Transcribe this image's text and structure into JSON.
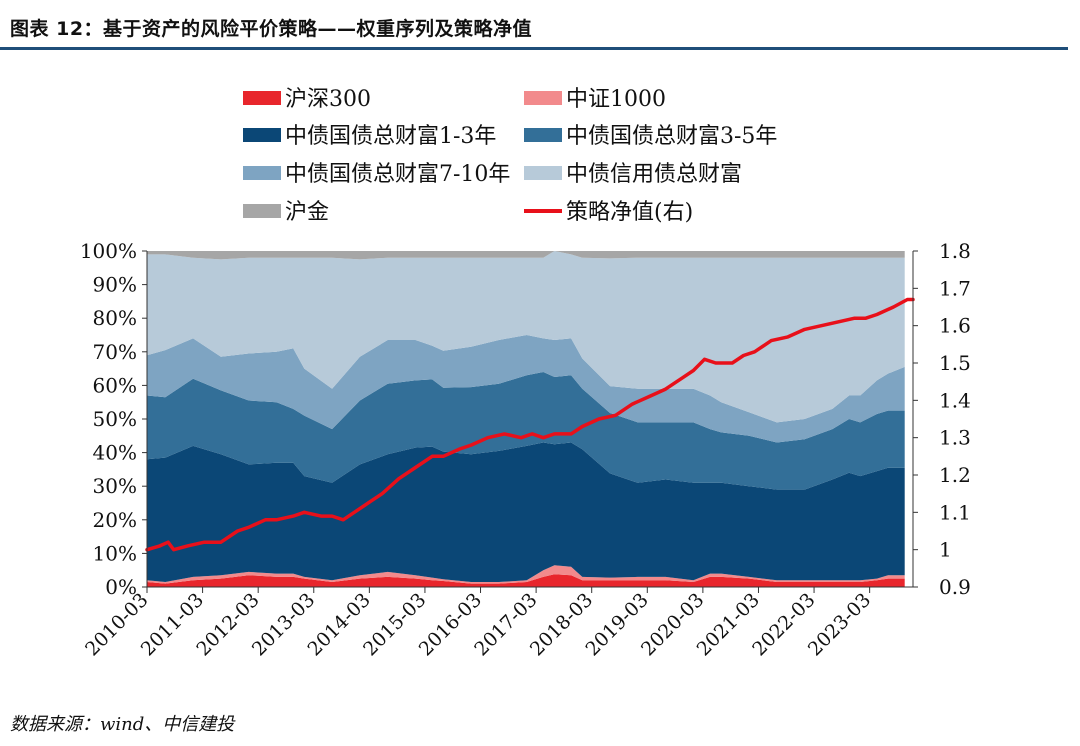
{
  "header": {
    "title": "图表 12：基于资产的风险平价策略——权重序列及策略净值"
  },
  "footer": {
    "source": "数据来源：wind、中信建投"
  },
  "chart_data": {
    "type": "area",
    "x_tick_labels": [
      "2010-03",
      "2011-03",
      "2012-03",
      "2013-03",
      "2014-03",
      "2015-03",
      "2016-03",
      "2017-03",
      "2018-03",
      "2019-03",
      "2020-03",
      "2021-03",
      "2022-03",
      "2023-03"
    ],
    "y_left": {
      "ylim": [
        0,
        100
      ],
      "ticks": [
        "0%",
        "10%",
        "20%",
        "30%",
        "40%",
        "50%",
        "60%",
        "70%",
        "80%",
        "90%",
        "100%"
      ]
    },
    "y_right": {
      "ylim": [
        0.9,
        1.8
      ],
      "ticks": [
        "0.9",
        "1",
        "1.1",
        "1.2",
        "1.3",
        "1.4",
        "1.5",
        "1.6",
        "1.7",
        "1.8"
      ]
    },
    "grid": false,
    "legend_position": "top",
    "x": [
      2010.17,
      2010.5,
      2011.0,
      2011.5,
      2012.0,
      2012.5,
      2012.8,
      2013.0,
      2013.5,
      2014.0,
      2014.5,
      2015.0,
      2015.3,
      2015.5,
      2016.0,
      2016.5,
      2017.0,
      2017.3,
      2017.5,
      2017.8,
      2018.0,
      2018.5,
      2019.0,
      2019.5,
      2020.0,
      2020.3,
      2020.5,
      2021.0,
      2021.5,
      2022.0,
      2022.5,
      2022.8,
      2023.0,
      2023.3,
      2023.5,
      2023.8
    ],
    "series": [
      {
        "name": "沪深300",
        "color": "#e8262c",
        "axis": "left",
        "kind": "stacked-area",
        "values": [
          1.5,
          1.0,
          2.0,
          2.5,
          3.5,
          3.0,
          3.0,
          2.5,
          1.5,
          2.5,
          3.0,
          2.5,
          2.0,
          1.8,
          1.0,
          1.0,
          1.5,
          3.0,
          3.8,
          3.5,
          2.0,
          2.0,
          2.0,
          2.0,
          1.5,
          3.0,
          3.0,
          2.5,
          1.5,
          1.5,
          1.5,
          1.5,
          1.5,
          2.0,
          2.5,
          2.5
        ]
      },
      {
        "name": "中证1000",
        "color": "#f28a8c",
        "axis": "left",
        "kind": "stacked-area",
        "values": [
          0.5,
          0.5,
          1.0,
          1.0,
          1.0,
          1.0,
          1.0,
          0.5,
          0.5,
          1.0,
          1.5,
          1.0,
          0.8,
          0.5,
          0.5,
          0.5,
          0.5,
          2.0,
          2.7,
          2.5,
          1.0,
          0.8,
          1.0,
          1.0,
          0.5,
          1.0,
          1.0,
          0.5,
          0.5,
          0.5,
          0.5,
          0.5,
          0.5,
          0.5,
          1.0,
          1.0
        ]
      },
      {
        "name": "中债国债总财富1-3年",
        "color": "#0b4776",
        "axis": "left",
        "kind": "stacked-area",
        "values": [
          36,
          37,
          39,
          36,
          32,
          33,
          33,
          30,
          29,
          33,
          35,
          38,
          39,
          38,
          38,
          39,
          40,
          38,
          36,
          37,
          38,
          31,
          28,
          29,
          29,
          27,
          27,
          27,
          27,
          27,
          30,
          32,
          31,
          32,
          32,
          32
        ]
      },
      {
        "name": "中债国债总财富3-5年",
        "color": "#336f98",
        "axis": "left",
        "kind": "stacked-area",
        "values": [
          19,
          18,
          20,
          19,
          19,
          18,
          16,
          18,
          16,
          19,
          21,
          20,
          20,
          19,
          20,
          20,
          21,
          21,
          20,
          20,
          18,
          18,
          18,
          17,
          18,
          16,
          15,
          15,
          14,
          15,
          15,
          16,
          16,
          17,
          17,
          17
        ]
      },
      {
        "name": "中债国债总财富7-10年",
        "color": "#7ea4c2",
        "axis": "left",
        "kind": "stacked-area",
        "values": [
          12,
          14,
          12,
          10,
          14,
          15,
          18,
          14,
          12,
          13,
          13,
          12,
          10,
          11,
          12,
          13,
          12,
          10,
          11,
          11,
          9,
          8,
          10,
          10,
          10,
          10,
          9,
          7,
          6,
          6,
          6,
          7,
          8,
          10,
          11,
          13
        ]
      },
      {
        "name": "中债信用债总财富",
        "color": "#b7cad9",
        "axis": "left",
        "kind": "stacked-area",
        "values": [
          30,
          28.5,
          24,
          29,
          28.5,
          28,
          27,
          33,
          39,
          29,
          24.5,
          24.5,
          26.2,
          27.7,
          26.5,
          24.5,
          23,
          24,
          27.5,
          25,
          30,
          38,
          39,
          39,
          39,
          41,
          43,
          46,
          49,
          48,
          45,
          41,
          41,
          36.5,
          34.5,
          32.5
        ]
      },
      {
        "name": "沪金",
        "color": "#a6a6a6",
        "axis": "left",
        "kind": "stacked-area",
        "values": [
          1.0,
          1.0,
          2.0,
          2.5,
          2.0,
          2.0,
          2.0,
          2.0,
          2.0,
          2.5,
          2.0,
          2.0,
          2.0,
          2.0,
          2.0,
          2.0,
          2.0,
          2.0,
          2.0,
          4.0,
          2.0,
          2.2,
          2.0,
          2.0,
          2.0,
          2.0,
          2.0,
          2.0,
          2.0,
          2.0,
          2.0,
          2.0,
          2.0,
          2.0,
          2.0,
          2.0
        ]
      },
      {
        "name": "策略净值(右)",
        "color": "#e8101a",
        "axis": "right",
        "kind": "line",
        "x": [
          2010.17,
          2010.4,
          2010.55,
          2010.65,
          2010.9,
          2011.2,
          2011.5,
          2011.8,
          2012.0,
          2012.3,
          2012.5,
          2012.8,
          2013.0,
          2013.3,
          2013.5,
          2013.7,
          2014.0,
          2014.2,
          2014.4,
          2014.7,
          2015.0,
          2015.3,
          2015.5,
          2015.8,
          2016.0,
          2016.3,
          2016.6,
          2016.9,
          2017.1,
          2017.3,
          2017.5,
          2017.8,
          2018.0,
          2018.3,
          2018.6,
          2018.9,
          2019.2,
          2019.5,
          2019.8,
          2020.0,
          2020.2,
          2020.4,
          2020.7,
          2020.9,
          2021.1,
          2021.4,
          2021.7,
          2022.0,
          2022.3,
          2022.6,
          2022.9,
          2023.1,
          2023.3,
          2023.6,
          2023.85,
          2023.95
        ],
        "values": [
          1.0,
          1.01,
          1.02,
          1.0,
          1.01,
          1.02,
          1.02,
          1.05,
          1.06,
          1.08,
          1.08,
          1.09,
          1.1,
          1.09,
          1.09,
          1.08,
          1.11,
          1.13,
          1.15,
          1.19,
          1.22,
          1.25,
          1.25,
          1.27,
          1.28,
          1.3,
          1.31,
          1.3,
          1.31,
          1.3,
          1.31,
          1.31,
          1.33,
          1.35,
          1.36,
          1.39,
          1.41,
          1.43,
          1.46,
          1.48,
          1.51,
          1.5,
          1.5,
          1.52,
          1.53,
          1.56,
          1.57,
          1.59,
          1.6,
          1.61,
          1.62,
          1.62,
          1.63,
          1.65,
          1.67,
          1.67
        ]
      }
    ]
  }
}
